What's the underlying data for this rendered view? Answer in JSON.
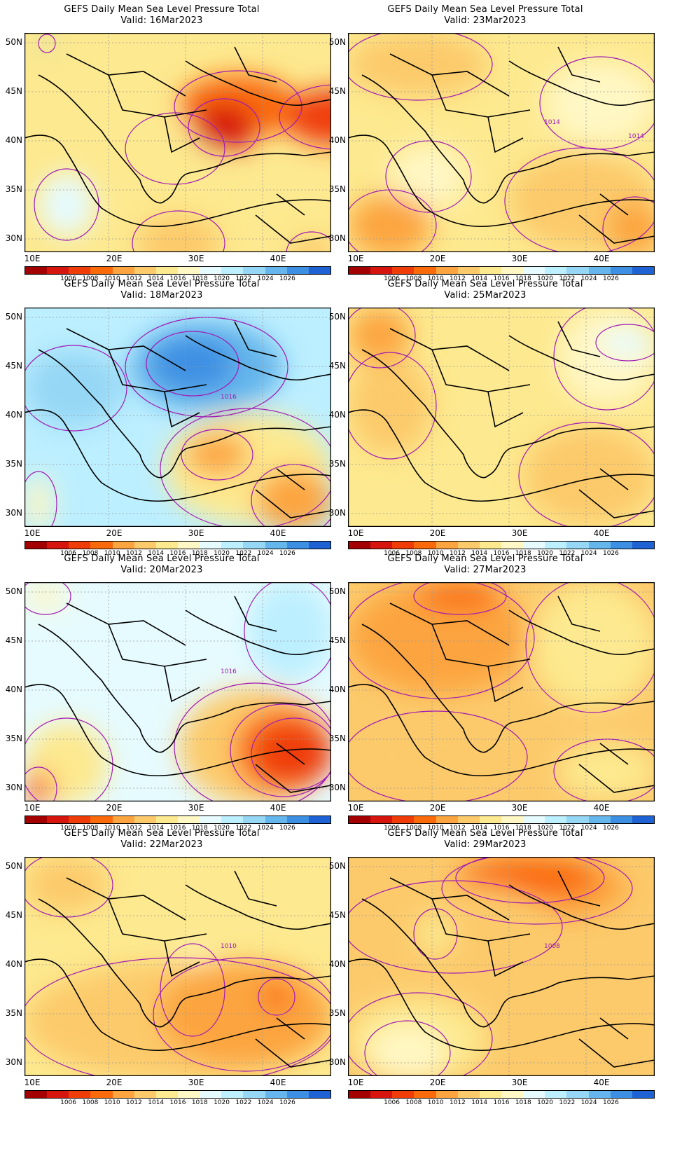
{
  "panels": [
    {
      "title": "GEFS Daily Mean Sea Level Pressure Total",
      "valid": "Valid: 16Mar2023",
      "contour_labels": [],
      "field": {
        "bg": 1014,
        "cells": [
          [
            26,
            8,
            12,
            14,
            1024
          ],
          [
            150,
            120,
            130,
            90,
            1014
          ],
          [
            220,
            60,
            170,
            90,
            1008
          ],
          [
            370,
            80,
            150,
            80,
            1006
          ],
          [
            240,
            100,
            90,
            70,
            1004
          ],
          [
            160,
            260,
            120,
            80,
            1012
          ],
          [
            20,
            200,
            80,
            90,
            1018
          ],
          [
            380,
            290,
            60,
            50,
            1012
          ]
        ]
      }
    },
    {
      "title": "GEFS Daily Mean Sea Level Pressure Total",
      "valid": "Valid: 23Mar2023",
      "contour_labels": [
        "1014",
        "1014"
      ],
      "field": {
        "bg": 1014,
        "cells": [
          [
            0,
            0,
            200,
            90,
            1012
          ],
          [
            280,
            40,
            160,
            120,
            1016
          ],
          [
            60,
            160,
            110,
            90,
            1016
          ],
          [
            230,
            170,
            210,
            140,
            1012
          ],
          [
            0,
            230,
            120,
            90,
            1010
          ],
          [
            370,
            240,
            80,
            80,
            1010
          ]
        ]
      }
    },
    {
      "title": "GEFS Daily Mean Sea Level Pressure Total",
      "valid": "Valid: 18Mar2023",
      "contour_labels": [
        "1016"
      ],
      "field": {
        "bg": 1020,
        "cells": [
          [
            150,
            20,
            220,
            130,
            1024
          ],
          [
            180,
            40,
            120,
            80,
            1026
          ],
          [
            0,
            60,
            140,
            110,
            1022
          ],
          [
            200,
            150,
            240,
            160,
            1014
          ],
          [
            230,
            180,
            90,
            60,
            1010
          ],
          [
            330,
            230,
            110,
            90,
            1010
          ],
          [
            0,
            240,
            40,
            80,
            1016
          ]
        ]
      }
    },
    {
      "title": "GEFS Daily Mean Sea Level Pressure Total",
      "valid": "Valid: 25Mar2023",
      "contour_labels": [],
      "field": {
        "bg": 1014,
        "cells": [
          [
            0,
            0,
            90,
            80,
            1010
          ],
          [
            0,
            70,
            120,
            140,
            1012
          ],
          [
            300,
            0,
            140,
            140,
            1016
          ],
          [
            360,
            30,
            80,
            40,
            1018
          ],
          [
            250,
            170,
            190,
            140,
            1012
          ]
        ]
      }
    },
    {
      "title": "GEFS Daily Mean Sea Level Pressure Total",
      "valid": "Valid: 20Mar2023",
      "contour_labels": [
        "1016"
      ],
      "field": {
        "bg": 1018,
        "cells": [
          [
            320,
            0,
            120,
            140,
            1020
          ],
          [
            0,
            0,
            60,
            40,
            1016
          ],
          [
            220,
            150,
            220,
            170,
            1012
          ],
          [
            300,
            180,
            140,
            120,
            1008
          ],
          [
            330,
            200,
            110,
            90,
            1006
          ],
          [
            0,
            200,
            120,
            120,
            1014
          ],
          [
            0,
            270,
            40,
            50,
            1008
          ]
        ]
      }
    },
    {
      "title": "GEFS Daily Mean Sea Level Pressure Total",
      "valid": "Valid: 27Mar2023",
      "contour_labels": [],
      "field": {
        "bg": 1012,
        "cells": [
          [
            0,
            0,
            260,
            160,
            1010
          ],
          [
            100,
            0,
            120,
            40,
            1008
          ],
          [
            260,
            0,
            180,
            180,
            1014
          ],
          [
            0,
            190,
            250,
            120,
            1012
          ],
          [
            300,
            230,
            140,
            80,
            1014
          ]
        ]
      }
    },
    {
      "title": "GEFS Daily Mean Sea Level Pressure Total",
      "valid": "Valid: 22Mar2023",
      "contour_labels": [
        "1010"
      ],
      "field": {
        "bg": 1014,
        "cells": [
          [
            0,
            0,
            120,
            80,
            1012
          ],
          [
            200,
            130,
            80,
            120,
            1016
          ],
          [
            0,
            150,
            440,
            170,
            1012
          ],
          [
            190,
            150,
            250,
            150,
            1010
          ],
          [
            340,
            180,
            40,
            40,
            1008
          ]
        ]
      }
    },
    {
      "title": "GEFS Daily Mean Sea Level Pressure Total",
      "valid": "Valid: 29Mar2023",
      "contour_labels": [
        "1008"
      ],
      "field": {
        "bg": 1012,
        "cells": [
          [
            140,
            0,
            260,
            90,
            1010
          ],
          [
            160,
            0,
            200,
            60,
            1008
          ],
          [
            0,
            40,
            300,
            120,
            1012
          ],
          [
            100,
            80,
            50,
            60,
            1014
          ],
          [
            0,
            200,
            200,
            120,
            1014
          ],
          [
            30,
            240,
            110,
            80,
            1016
          ]
        ]
      }
    }
  ],
  "lon_ticks": [
    "10E",
    "20E",
    "30E",
    "40E"
  ],
  "lat_ticks": [
    "50N",
    "45N",
    "40N",
    "35N",
    "30N"
  ],
  "colorbar": {
    "labels": [
      "1006",
      "1008",
      "1010",
      "1012",
      "1014",
      "1016",
      "1018",
      "1020",
      "1022",
      "1024",
      "1026"
    ],
    "colors": [
      "#a50000",
      "#d7150f",
      "#ef3c08",
      "#fb6a0a",
      "#fca540",
      "#fcca6b",
      "#fde98f",
      "#fff7c4",
      "#e6fbff",
      "#bcefff",
      "#95d7f5",
      "#65b6ec",
      "#3d8fe3",
      "#1f62d3"
    ]
  }
}
